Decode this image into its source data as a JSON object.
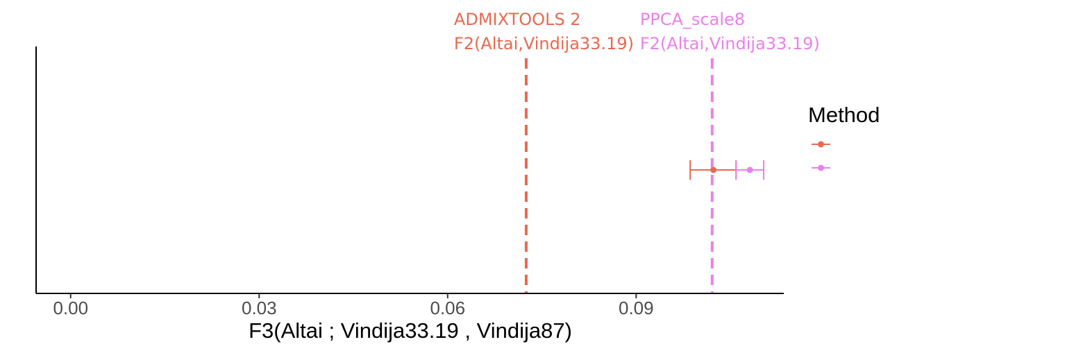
{
  "chart_data": {
    "type": "scatter",
    "title": "",
    "xlabel": "F3(Altai ; Vindija33.19 , Vindija87)",
    "ylabel": "",
    "xlim": [
      -0.0055,
      0.1135
    ],
    "x_ticks": [
      0.0,
      0.03,
      0.06,
      0.09
    ],
    "x_tick_labels": [
      "0.00",
      "0.03",
      "0.06",
      "0.09"
    ],
    "grid": false,
    "legend": {
      "title": "Method",
      "position": "right",
      "entries": [
        {
          "label": "",
          "color": "#E8694F"
        },
        {
          "label": "",
          "color": "#EA80EA"
        }
      ]
    },
    "series": [
      {
        "color": "#E8694F",
        "x": 0.1023,
        "xmin": 0.0986,
        "xmax": 0.1059
      },
      {
        "color": "#EA80EA",
        "x": 0.1081,
        "xmin": 0.1059,
        "xmax": 0.1103
      }
    ],
    "reference_lines": [
      {
        "x": 0.0725,
        "style": "dashed",
        "color": "#E8694F",
        "label_lines": [
          "ADMIXTOOLS 2",
          "F2(Altai,Vindija33.19)"
        ]
      },
      {
        "x": 0.1021,
        "style": "dashed",
        "color": "#EA80EA",
        "label_lines": [
          "PPCA_scale8",
          "F2(Altai,Vindija33.19)"
        ]
      }
    ]
  }
}
